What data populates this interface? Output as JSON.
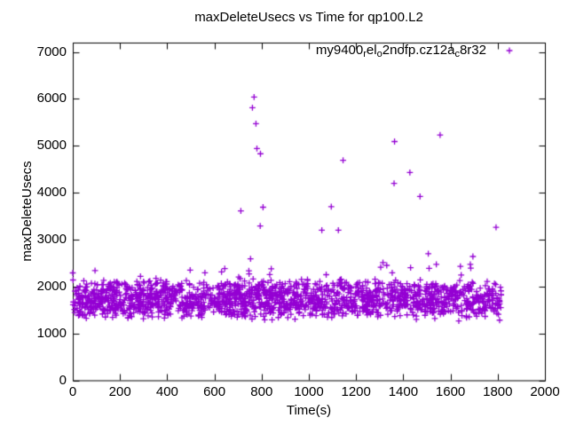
{
  "page": {
    "background": "#ffffff",
    "text_color": "#000000"
  },
  "chart_data": {
    "type": "scatter",
    "title": "maxDeleteUsecs vs Time for qp100.L2",
    "xlabel": "Time(s)",
    "ylabel": "maxDeleteUsecs",
    "xlim": [
      0,
      2000
    ],
    "ylim": [
      0,
      7200
    ],
    "x_ticks": [
      0,
      200,
      400,
      600,
      800,
      1000,
      1200,
      1400,
      1600,
      1800,
      2000
    ],
    "y_ticks": [
      0,
      1000,
      2000,
      3000,
      4000,
      5000,
      6000,
      7000
    ],
    "grid": false,
    "legend_position": "inside-top-right",
    "legend": {
      "label_raw": "my9400_rel_o2nofp.cz12a_c8r32",
      "label_parts": [
        {
          "t": "my9400",
          "sub": false
        },
        {
          "t": "r",
          "sub": true
        },
        {
          "t": "el",
          "sub": false
        },
        {
          "t": "o",
          "sub": true
        },
        {
          "t": "2nofp.cz12a",
          "sub": false
        },
        {
          "t": "c",
          "sub": true
        },
        {
          "t": "8r32",
          "sub": false
        }
      ]
    },
    "series": [
      {
        "name": "my9400_rel_o2nofp.cz12a_c8r32",
        "marker": "plus",
        "color": "#9400D3",
        "outlier_points": [
          [
            0,
            2290
          ],
          [
            712,
            3610
          ],
          [
            753,
            2590
          ],
          [
            761,
            5810
          ],
          [
            768,
            6040
          ],
          [
            776,
            5470
          ],
          [
            780,
            4940
          ],
          [
            795,
            4830
          ],
          [
            794,
            3290
          ],
          [
            806,
            3690
          ],
          [
            1055,
            3200
          ],
          [
            1095,
            3700
          ],
          [
            1125,
            3200
          ],
          [
            1145,
            4690
          ],
          [
            1314,
            2510
          ],
          [
            1330,
            2450
          ],
          [
            1361,
            4200
          ],
          [
            1363,
            5090
          ],
          [
            1428,
            4430
          ],
          [
            1431,
            2400
          ],
          [
            1471,
            3920
          ],
          [
            1506,
            2700
          ],
          [
            1540,
            2470
          ],
          [
            1556,
            5230
          ],
          [
            1642,
            2430
          ],
          [
            1684,
            2470
          ],
          [
            1695,
            2640
          ],
          [
            1793,
            3260
          ]
        ],
        "band": {
          "description": "dense noisy band of max delete latency samples",
          "x_range": [
            0,
            1815
          ],
          "y_core": [
            1300,
            2180
          ],
          "y_extremes": [
            1250,
            2420
          ],
          "count": 1700,
          "straggler_count": 90,
          "seed": 1337
        }
      }
    ]
  }
}
